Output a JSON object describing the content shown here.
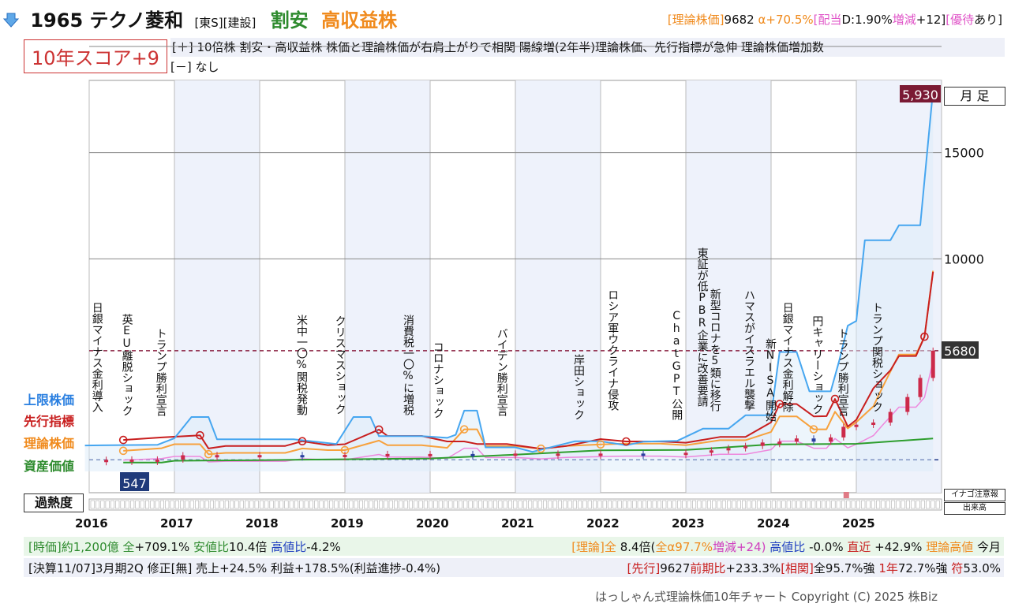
{
  "header": {
    "code": "1965",
    "name": "テクノ菱和",
    "market": "[東S][建設]",
    "tag1": "割安",
    "tag2": "高収益株",
    "theory_label": "[理論株価]",
    "theory_value": "9682",
    "alpha": "α+70.5%",
    "dividend_label": "[配当",
    "dividend_value": "D:1.90%",
    "increase_label": "増減",
    "increase_value": "+12]",
    "benefit_label": "[優待",
    "benefit_value": "あり]"
  },
  "score": {
    "label": "10年スコア+9"
  },
  "plus_line": "[＋] 10倍株 割安・高収益株 株価と理論株価が右肩上がりで相関 陽線増(2年半)理論株価、先行指標が急伸 理論株価増加数",
  "minus_line": "[－] なし",
  "timeframe": "月 足",
  "left_labels": {
    "upper": "上限株価",
    "leading": "先行指標",
    "theory": "理論株価",
    "asset": "資産価値",
    "overheat": "過熱度"
  },
  "right_small": {
    "inago": "イナゴ注意報",
    "volume": "出来高"
  },
  "colors": {
    "upper": "#46a6f0",
    "leading": "#c81e1e",
    "theory": "#f7a13c",
    "asset": "#2e9e2e",
    "pink": "#ee88dd",
    "purple": "#b040e0",
    "candle_up": "#cc2a4a",
    "candle_down": "#2a40a0",
    "shade": "#eef2fb"
  },
  "chart_data": {
    "type": "line",
    "title": "",
    "x_years": [
      "2016",
      "2017",
      "2018",
      "2019",
      "2020",
      "2021",
      "2022",
      "2023",
      "2024",
      "2025"
    ],
    "y_ticks": [
      15000,
      10000
    ],
    "ylim": [
      0,
      18400
    ],
    "price_high_label": "5,930",
    "price_low_label": "547",
    "price_current_label": "5680",
    "price_current": 5680,
    "events": [
      {
        "t": 2016.1,
        "label": "日銀マイナス金利導入"
      },
      {
        "t": 2016.45,
        "label": "英EU離脱ショック"
      },
      {
        "t": 2016.85,
        "label": "トランプ勝利宣言"
      },
      {
        "t": 2018.5,
        "label": "米中一〇%関税発動"
      },
      {
        "t": 2018.95,
        "label": "クリスマスショック"
      },
      {
        "t": 2019.75,
        "label": "消費税一〇%に増税"
      },
      {
        "t": 2020.1,
        "label": "コロナショック"
      },
      {
        "t": 2020.85,
        "label": "バイデン勝利宣言"
      },
      {
        "t": 2021.75,
        "label": "岸田ショック"
      },
      {
        "t": 2022.15,
        "label": "ロシア軍ウクライナ侵攻"
      },
      {
        "t": 2022.9,
        "label": "ChatGPT公開"
      },
      {
        "t": 2023.2,
        "label": "東証が低PBR企業に改善要請"
      },
      {
        "t": 2023.35,
        "label": "新型コロナを5類に移行"
      },
      {
        "t": 2023.75,
        "label": "ハマスがイスラエル襲撃"
      },
      {
        "t": 2024.0,
        "label": "新NISA開始"
      },
      {
        "t": 2024.2,
        "label": "日銀マイナス金利解除"
      },
      {
        "t": 2024.55,
        "label": "円キャリーショック"
      },
      {
        "t": 2024.85,
        "label": "トランプ勝利宣言"
      },
      {
        "t": 2025.25,
        "label": "トランプ関税ショック"
      }
    ],
    "series": [
      {
        "name": "上限株価",
        "color": "#46a6f0",
        "points": [
          [
            2015.95,
            1220
          ],
          [
            2016.8,
            1250
          ],
          [
            2017.0,
            1560
          ],
          [
            2017.2,
            2560
          ],
          [
            2017.4,
            2560
          ],
          [
            2017.5,
            1510
          ],
          [
            2018.4,
            1510
          ],
          [
            2018.9,
            1290
          ],
          [
            2019.1,
            2560
          ],
          [
            2019.3,
            2560
          ],
          [
            2019.4,
            1660
          ],
          [
            2019.9,
            1660
          ],
          [
            2020.2,
            1580
          ],
          [
            2020.3,
            1720
          ],
          [
            2020.4,
            2860
          ],
          [
            2020.55,
            2860
          ],
          [
            2020.65,
            1130
          ],
          [
            2021.0,
            1130
          ],
          [
            2021.2,
            920
          ],
          [
            2021.7,
            1420
          ],
          [
            2022.0,
            1420
          ],
          [
            2022.3,
            1230
          ],
          [
            2022.5,
            1400
          ],
          [
            2022.9,
            1440
          ],
          [
            2023.2,
            2010
          ],
          [
            2023.5,
            2010
          ],
          [
            2023.7,
            2640
          ],
          [
            2024.0,
            2640
          ],
          [
            2024.1,
            5620
          ],
          [
            2024.3,
            5620
          ],
          [
            2024.45,
            3770
          ],
          [
            2024.7,
            3770
          ],
          [
            2024.8,
            5220
          ],
          [
            2024.9,
            6860
          ],
          [
            2025.0,
            7080
          ],
          [
            2025.1,
            10880
          ],
          [
            2025.4,
            10880
          ],
          [
            2025.5,
            11580
          ],
          [
            2025.75,
            11580
          ],
          [
            2025.9,
            17940
          ]
        ]
      },
      {
        "name": "先行指標",
        "color": "#c81e1e",
        "points": [
          [
            2016.4,
            1480
          ],
          [
            2016.85,
            1600
          ],
          [
            2017.3,
            1700
          ],
          [
            2017.4,
            1080
          ],
          [
            2017.6,
            1200
          ],
          [
            2018.1,
            1200
          ],
          [
            2018.3,
            1200
          ],
          [
            2018.5,
            1420
          ],
          [
            2018.8,
            1240
          ],
          [
            2019.0,
            1280
          ],
          [
            2019.4,
            1970
          ],
          [
            2019.5,
            1670
          ],
          [
            2019.9,
            1670
          ],
          [
            2020.2,
            1410
          ],
          [
            2020.4,
            1410
          ],
          [
            2020.55,
            1290
          ],
          [
            2020.9,
            1290
          ],
          [
            2021.3,
            1070
          ],
          [
            2021.6,
            1200
          ],
          [
            2022.0,
            1520
          ],
          [
            2022.3,
            1410
          ],
          [
            2022.7,
            1410
          ],
          [
            2023.0,
            1350
          ],
          [
            2023.4,
            1620
          ],
          [
            2023.7,
            1620
          ],
          [
            2024.0,
            2310
          ],
          [
            2024.1,
            3170
          ],
          [
            2024.3,
            3170
          ],
          [
            2024.5,
            2590
          ],
          [
            2024.65,
            2600
          ],
          [
            2024.75,
            3410
          ],
          [
            2024.9,
            2110
          ],
          [
            2025.0,
            2430
          ],
          [
            2025.2,
            3910
          ],
          [
            2025.4,
            4760
          ],
          [
            2025.5,
            5430
          ],
          [
            2025.7,
            5430
          ],
          [
            2025.8,
            6340
          ],
          [
            2025.9,
            9390
          ]
        ]
      },
      {
        "name": "理論株価",
        "color": "#f7a13c",
        "points": [
          [
            2016.4,
            970
          ],
          [
            2016.85,
            1090
          ],
          [
            2017.0,
            1280
          ],
          [
            2017.3,
            1280
          ],
          [
            2017.4,
            810
          ],
          [
            2017.6,
            870
          ],
          [
            2018.0,
            870
          ],
          [
            2018.3,
            870
          ],
          [
            2018.5,
            1080
          ],
          [
            2018.8,
            1000
          ],
          [
            2019.0,
            1000
          ],
          [
            2019.4,
            1450
          ],
          [
            2019.5,
            1230
          ],
          [
            2019.9,
            1230
          ],
          [
            2020.2,
            1110
          ],
          [
            2020.4,
            1980
          ],
          [
            2020.55,
            1980
          ],
          [
            2020.65,
            1190
          ],
          [
            2021.0,
            1190
          ],
          [
            2021.3,
            1070
          ],
          [
            2021.6,
            1200
          ],
          [
            2022.0,
            1270
          ],
          [
            2022.3,
            1310
          ],
          [
            2022.7,
            1310
          ],
          [
            2023.0,
            1230
          ],
          [
            2023.4,
            1470
          ],
          [
            2023.7,
            1470
          ],
          [
            2024.0,
            1860
          ],
          [
            2024.1,
            2590
          ],
          [
            2024.3,
            2590
          ],
          [
            2024.5,
            1980
          ],
          [
            2024.65,
            1980
          ],
          [
            2024.75,
            2810
          ],
          [
            2024.9,
            2020
          ],
          [
            2025.0,
            2320
          ],
          [
            2025.2,
            3060
          ],
          [
            2025.3,
            3900
          ],
          [
            2025.5,
            5500
          ],
          [
            2025.7,
            5500
          ],
          [
            2025.8,
            6340
          ],
          [
            2025.9,
            9440
          ]
        ]
      },
      {
        "name": "資産価値",
        "color": "#2e9e2e",
        "points": [
          [
            2016.4,
            420
          ],
          [
            2016.85,
            420
          ],
          [
            2017.0,
            500
          ],
          [
            2018.0,
            530
          ],
          [
            2019.0,
            570
          ],
          [
            2020.0,
            610
          ],
          [
            2021.0,
            790
          ],
          [
            2022.0,
            990
          ],
          [
            2023.0,
            1010
          ],
          [
            2024.0,
            1270
          ],
          [
            2025.0,
            1300
          ],
          [
            2025.9,
            1550
          ]
        ]
      }
    ],
    "candles": [
      [
        2016.2,
        547
      ],
      [
        2016.5,
        560
      ],
      [
        2016.8,
        560
      ],
      [
        2017.1,
        760
      ],
      [
        2017.5,
        770
      ],
      [
        2018.0,
        770
      ],
      [
        2018.5,
        760
      ],
      [
        2019.0,
        780
      ],
      [
        2019.5,
        820
      ],
      [
        2020.0,
        820
      ],
      [
        2020.5,
        790
      ],
      [
        2021.0,
        840
      ],
      [
        2021.5,
        840
      ],
      [
        2022.0,
        840
      ],
      [
        2022.5,
        800
      ],
      [
        2023.0,
        880
      ],
      [
        2023.3,
        990
      ],
      [
        2023.5,
        1100
      ],
      [
        2023.7,
        1200
      ],
      [
        2023.9,
        1360
      ],
      [
        2024.1,
        1400
      ],
      [
        2024.3,
        1550
      ],
      [
        2024.5,
        1400
      ],
      [
        2024.7,
        1600
      ],
      [
        2024.85,
        2100
      ],
      [
        2025.0,
        2200
      ],
      [
        2025.2,
        2300
      ],
      [
        2025.4,
        2800
      ],
      [
        2025.6,
        3500
      ],
      [
        2025.75,
        4400
      ],
      [
        2025.9,
        5680
      ]
    ]
  },
  "bottom1": {
    "left_time": "[時価]約1,200億",
    "left_all_label": "全",
    "left_all_value": "+709.1%",
    "left_low_label": "安値比",
    "left_low_value": "10.4倍",
    "left_high_label": "高値比",
    "left_high_value": "-4.2%",
    "right_theory_label": "[理論]全",
    "right_theory_value": "8.4倍(",
    "right_alpha": "全α97.7%",
    "right_inc": "増減+24)",
    "right_high_label": "高値比",
    "right_high_value": "-0.0%",
    "right_recent_label": "直近",
    "right_recent_value": "+42.9%",
    "right_th_high_label": "理論高値",
    "right_th_high_value": "今月"
  },
  "bottom2": {
    "left": "[決算11/07]3月期2Q 修正[無] 売上+24.5% 利益+178.5%(利益進捗-0.4%)",
    "right_lead_label": "[先行]",
    "right_lead_value": "9627",
    "right_prev_label": "前期比",
    "right_prev_value": "+233.3%",
    "right_corr_label": "[相関]",
    "right_corr_value": "全95.7%強",
    "right_year_label": "1年",
    "right_year_value": "72.7%強",
    "right_sign_label": "符",
    "right_sign_value": "53.0%"
  },
  "copyright": "はっしゃん式理論株価10年チャート Copyright (C) 2025 株Biz"
}
